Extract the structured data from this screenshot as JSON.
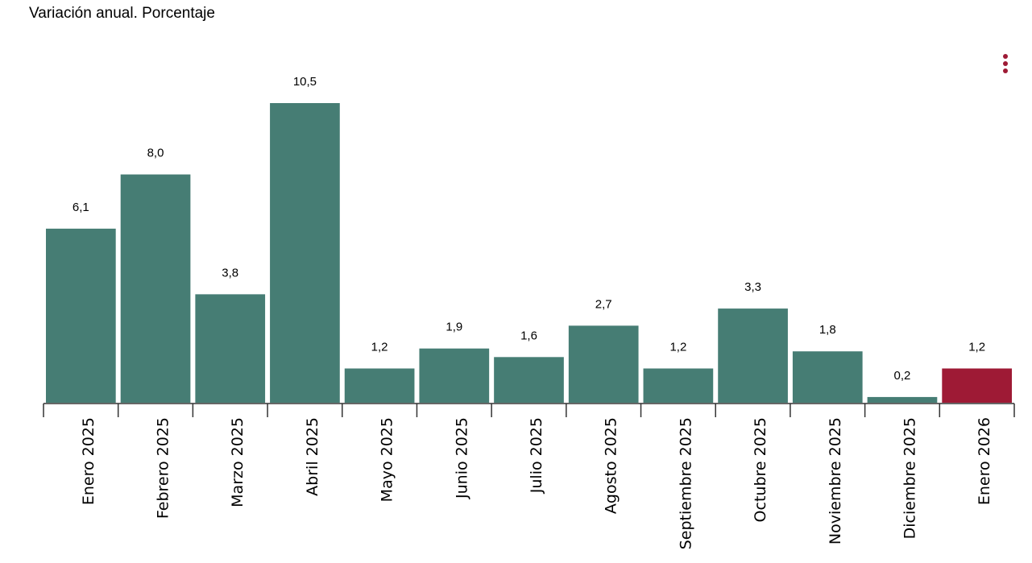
{
  "chart_data": {
    "type": "bar",
    "title": "Variación anual. Porcentaje",
    "categories": [
      "Enero 2025",
      "Febrero 2025",
      "Marzo 2025",
      "Abril 2025",
      "Mayo 2025",
      "Junio 2025",
      "Julio 2025",
      "Agosto 2025",
      "Septiembre 2025",
      "Octubre 2025",
      "Noviembre 2025",
      "Diciembre 2025",
      "Enero 2026"
    ],
    "values": [
      6.1,
      8.0,
      3.8,
      10.5,
      1.2,
      1.9,
      1.6,
      2.7,
      1.2,
      3.3,
      1.8,
      0.2,
      1.2
    ],
    "value_labels": [
      "6,1",
      "8,0",
      "3,8",
      "10,5",
      "1,2",
      "1,9",
      "1,6",
      "2,7",
      "1,2",
      "3,3",
      "1,8",
      "0,2",
      "1,2"
    ],
    "colors": [
      "#467d74",
      "#467d74",
      "#467d74",
      "#467d74",
      "#467d74",
      "#467d74",
      "#467d74",
      "#467d74",
      "#467d74",
      "#467d74",
      "#467d74",
      "#467d74",
      "#9e1a35"
    ]
  }
}
